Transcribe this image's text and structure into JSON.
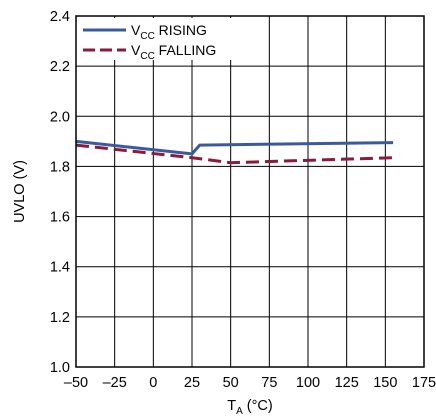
{
  "chart_data": {
    "type": "line",
    "xlabel": {
      "base": "T",
      "sub": "A",
      "rest": " (°C)"
    },
    "ylabel": "UVLO (V)",
    "xlim": [
      -50,
      175
    ],
    "ylim": [
      1.0,
      2.4
    ],
    "xticks": [
      -50,
      -25,
      0,
      25,
      50,
      75,
      100,
      125,
      150,
      175
    ],
    "xtick_labels": [
      "–50",
      "–25",
      "0",
      "25",
      "50",
      "75",
      "100",
      "125",
      "150",
      "175"
    ],
    "yticks": [
      1.0,
      1.2,
      1.4,
      1.6,
      1.8,
      2.0,
      2.2,
      2.4
    ],
    "ytick_labels": [
      "1.0",
      "1.2",
      "1.4",
      "1.6",
      "1.8",
      "2.0",
      "2.2",
      "2.4"
    ],
    "grid": true,
    "legend_position": "top-left",
    "series": [
      {
        "name": {
          "base": "V",
          "sub": "CC",
          "rest": " RISING"
        },
        "color": "#3a5a9c",
        "style": "solid",
        "x": [
          -50,
          25,
          30,
          155
        ],
        "y": [
          1.9,
          1.85,
          1.885,
          1.895
        ]
      },
      {
        "name": {
          "base": "V",
          "sub": "CC",
          "rest": " FALLING"
        },
        "color": "#8c1a3a",
        "style": "dashed",
        "x": [
          -50,
          25,
          50,
          155
        ],
        "y": [
          1.885,
          1.835,
          1.815,
          1.835
        ]
      }
    ]
  }
}
